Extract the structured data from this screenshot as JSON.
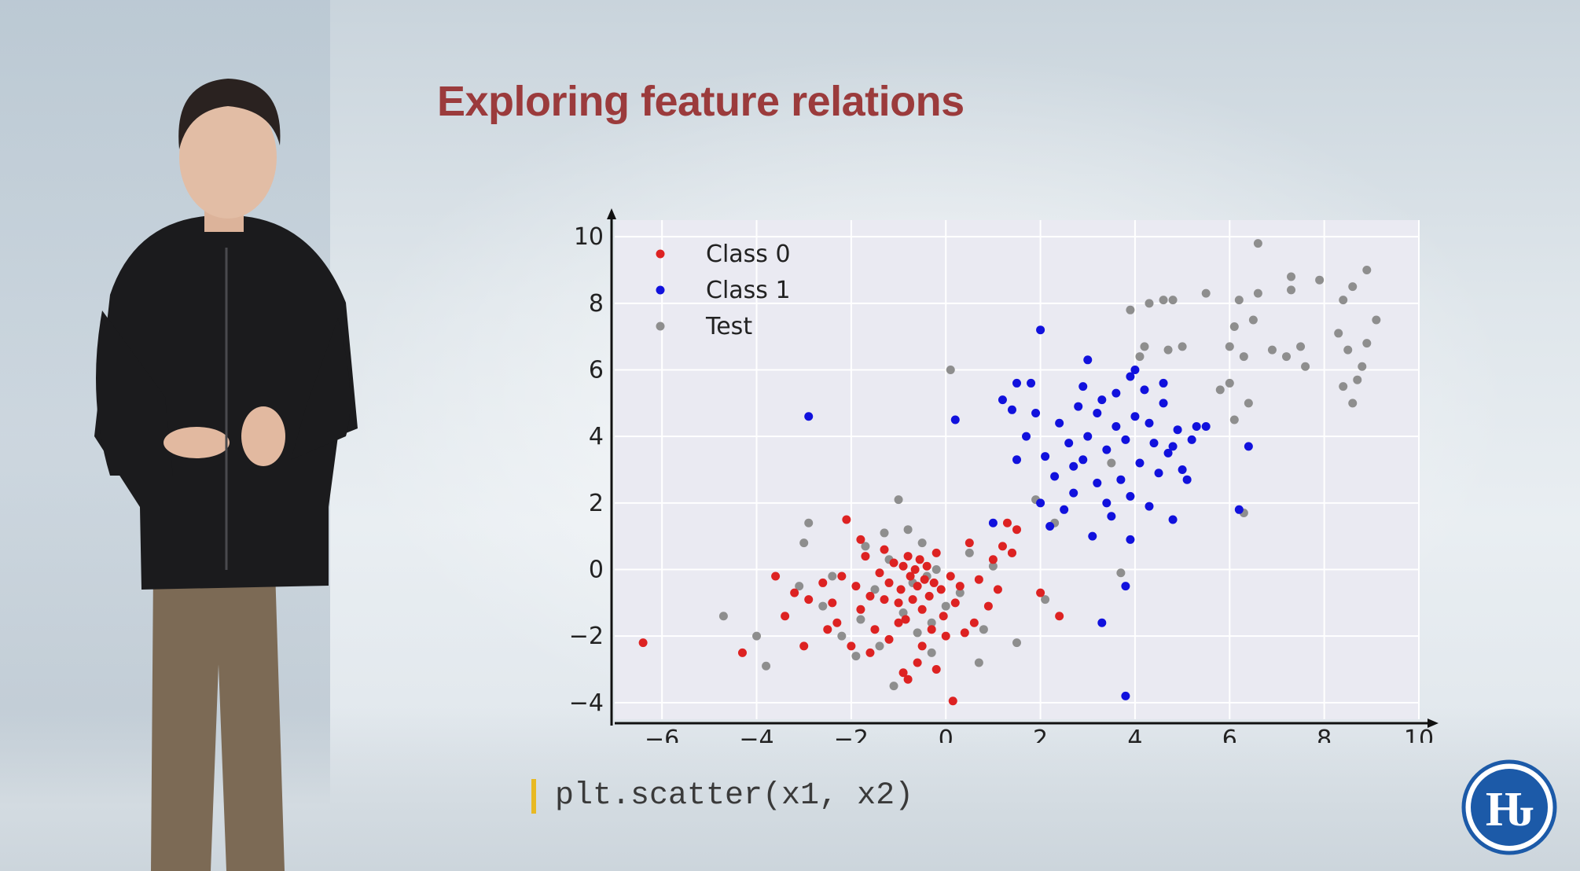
{
  "slide": {
    "title": "Exploring feature relations",
    "code": "plt.scatter(x1, x2)"
  },
  "colors": {
    "title": "#9b3b3c",
    "class0": "#dd2222",
    "class1": "#1111dd",
    "test": "#8e8e8e",
    "plot_bg": "#eaeaf2",
    "code_bar": "#e8b923",
    "logo": "#1c5aa8"
  },
  "logo": {
    "glyph": "Ԋ"
  },
  "chart_data": {
    "type": "scatter",
    "xlim": [
      -7,
      10
    ],
    "ylim": [
      -4.5,
      10.5
    ],
    "xticks": [
      -6,
      -4,
      -2,
      0,
      2,
      4,
      6,
      8,
      10
    ],
    "yticks": [
      -4,
      -2,
      0,
      2,
      4,
      6,
      8,
      10
    ],
    "grid": true,
    "legend_position": "top-left",
    "series": [
      {
        "name": "Class 0",
        "color": "#dd2222",
        "points": [
          [
            -6.4,
            -2.2
          ],
          [
            -4.3,
            -2.5
          ],
          [
            -3.6,
            -0.2
          ],
          [
            -3.4,
            -1.4
          ],
          [
            -3.2,
            -0.7
          ],
          [
            -3.0,
            -2.3
          ],
          [
            -2.9,
            -0.9
          ],
          [
            -2.6,
            -0.4
          ],
          [
            -2.4,
            -1.0
          ],
          [
            -2.3,
            -1.6
          ],
          [
            -2.2,
            -0.2
          ],
          [
            -2.1,
            1.5
          ],
          [
            -2.0,
            -2.3
          ],
          [
            -1.9,
            -0.5
          ],
          [
            -1.8,
            -1.2
          ],
          [
            -1.7,
            0.4
          ],
          [
            -1.6,
            -0.8
          ],
          [
            -1.5,
            -1.8
          ],
          [
            -1.4,
            -0.1
          ],
          [
            -1.3,
            0.6
          ],
          [
            -1.2,
            -0.4
          ],
          [
            -1.2,
            -2.1
          ],
          [
            -1.1,
            0.2
          ],
          [
            -1.0,
            -1.0
          ],
          [
            -0.95,
            -0.6
          ],
          [
            -0.9,
            0.1
          ],
          [
            -0.85,
            -1.5
          ],
          [
            -0.8,
            0.4
          ],
          [
            -0.75,
            -0.2
          ],
          [
            -0.7,
            -0.9
          ],
          [
            -0.65,
            0.0
          ],
          [
            -0.6,
            -0.5
          ],
          [
            -0.55,
            0.3
          ],
          [
            -0.5,
            -1.2
          ],
          [
            -0.45,
            -0.3
          ],
          [
            -0.4,
            0.1
          ],
          [
            -0.35,
            -0.8
          ],
          [
            -0.3,
            -1.8
          ],
          [
            -0.25,
            -0.4
          ],
          [
            -0.2,
            0.5
          ],
          [
            -0.1,
            -0.6
          ],
          [
            -0.05,
            -1.4
          ],
          [
            0.0,
            -2.0
          ],
          [
            0.1,
            -0.2
          ],
          [
            0.2,
            -1.0
          ],
          [
            0.3,
            -0.5
          ],
          [
            0.4,
            -1.9
          ],
          [
            0.5,
            0.8
          ],
          [
            0.7,
            -0.3
          ],
          [
            0.9,
            -1.1
          ],
          [
            1.0,
            0.3
          ],
          [
            1.1,
            -0.6
          ],
          [
            1.2,
            0.7
          ],
          [
            1.4,
            0.5
          ],
          [
            1.3,
            1.4
          ],
          [
            1.5,
            1.2
          ],
          [
            2.0,
            -0.7
          ],
          [
            2.4,
            -1.4
          ],
          [
            -0.9,
            -3.1
          ],
          [
            -0.8,
            -3.3
          ],
          [
            0.15,
            -3.95
          ],
          [
            -0.6,
            -2.8
          ],
          [
            -0.2,
            -3.0
          ],
          [
            -1.6,
            -2.5
          ],
          [
            -2.5,
            -1.8
          ],
          [
            -1.0,
            -1.6
          ],
          [
            -0.5,
            -2.3
          ],
          [
            0.6,
            -1.6
          ],
          [
            -1.8,
            0.9
          ],
          [
            -1.3,
            -0.9
          ]
        ]
      },
      {
        "name": "Class 1",
        "color": "#1111dd",
        "points": [
          [
            -2.9,
            4.6
          ],
          [
            0.2,
            4.5
          ],
          [
            1.0,
            1.4
          ],
          [
            1.2,
            5.1
          ],
          [
            1.4,
            4.8
          ],
          [
            1.5,
            3.3
          ],
          [
            1.5,
            5.6
          ],
          [
            1.7,
            4.0
          ],
          [
            1.8,
            5.6
          ],
          [
            1.9,
            4.7
          ],
          [
            2.0,
            7.2
          ],
          [
            2.0,
            2.0
          ],
          [
            2.1,
            3.4
          ],
          [
            2.2,
            1.3
          ],
          [
            2.3,
            2.8
          ],
          [
            2.4,
            4.4
          ],
          [
            2.5,
            1.8
          ],
          [
            2.6,
            3.8
          ],
          [
            2.7,
            2.3
          ],
          [
            2.8,
            4.9
          ],
          [
            2.9,
            3.3
          ],
          [
            3.0,
            6.3
          ],
          [
            3.0,
            4.0
          ],
          [
            3.1,
            1.0
          ],
          [
            3.2,
            2.6
          ],
          [
            3.3,
            5.1
          ],
          [
            3.4,
            3.6
          ],
          [
            3.5,
            1.6
          ],
          [
            3.6,
            4.3
          ],
          [
            3.7,
            2.7
          ],
          [
            3.8,
            3.9
          ],
          [
            3.9,
            5.8
          ],
          [
            3.9,
            2.2
          ],
          [
            4.0,
            4.6
          ],
          [
            4.1,
            3.2
          ],
          [
            4.2,
            5.4
          ],
          [
            4.3,
            1.9
          ],
          [
            4.4,
            3.8
          ],
          [
            4.5,
            2.9
          ],
          [
            4.6,
            5.0
          ],
          [
            4.7,
            3.5
          ],
          [
            4.8,
            1.5
          ],
          [
            4.9,
            4.2
          ],
          [
            5.0,
            3.0
          ],
          [
            5.1,
            2.7
          ],
          [
            5.2,
            3.9
          ],
          [
            5.3,
            4.3
          ],
          [
            5.5,
            4.3
          ],
          [
            6.2,
            1.8
          ],
          [
            6.4,
            3.7
          ],
          [
            3.8,
            -0.5
          ],
          [
            3.3,
            -1.6
          ],
          [
            3.8,
            -3.8
          ],
          [
            3.9,
            0.9
          ],
          [
            3.6,
            5.3
          ],
          [
            4.0,
            6.0
          ],
          [
            4.6,
            5.6
          ],
          [
            2.9,
            5.5
          ],
          [
            3.2,
            4.7
          ],
          [
            4.3,
            4.4
          ],
          [
            2.7,
            3.1
          ],
          [
            3.4,
            2.0
          ],
          [
            4.8,
            3.7
          ]
        ]
      },
      {
        "name": "Test",
        "color": "#8e8e8e",
        "points": [
          [
            -4.7,
            -1.4
          ],
          [
            -4.0,
            -2.0
          ],
          [
            -3.8,
            -2.9
          ],
          [
            -3.1,
            -0.5
          ],
          [
            -3.0,
            0.8
          ],
          [
            -2.9,
            1.4
          ],
          [
            -2.4,
            -0.2
          ],
          [
            -2.2,
            -2.0
          ],
          [
            -1.8,
            -1.5
          ],
          [
            -1.7,
            0.7
          ],
          [
            -1.5,
            -0.6
          ],
          [
            -1.4,
            -2.3
          ],
          [
            -1.3,
            1.1
          ],
          [
            -1.2,
            0.3
          ],
          [
            -1.1,
            -3.5
          ],
          [
            -1.0,
            2.1
          ],
          [
            -0.9,
            -1.3
          ],
          [
            -0.8,
            1.2
          ],
          [
            -0.7,
            -0.4
          ],
          [
            -0.6,
            -1.9
          ],
          [
            -0.5,
            0.8
          ],
          [
            -0.4,
            -0.2
          ],
          [
            -0.3,
            -2.5
          ],
          [
            -0.2,
            0.0
          ],
          [
            0.0,
            -1.1
          ],
          [
            0.1,
            6.0
          ],
          [
            0.3,
            -0.7
          ],
          [
            0.5,
            0.5
          ],
          [
            0.7,
            -2.8
          ],
          [
            0.8,
            -1.8
          ],
          [
            1.0,
            0.1
          ],
          [
            1.5,
            -2.2
          ],
          [
            1.4,
            0.5
          ],
          [
            1.9,
            2.1
          ],
          [
            2.1,
            -0.9
          ],
          [
            2.3,
            1.4
          ],
          [
            3.5,
            3.2
          ],
          [
            3.7,
            -0.1
          ],
          [
            3.9,
            7.8
          ],
          [
            4.1,
            6.4
          ],
          [
            4.2,
            6.7
          ],
          [
            4.3,
            8.0
          ],
          [
            4.6,
            8.1
          ],
          [
            4.7,
            6.6
          ],
          [
            4.8,
            8.1
          ],
          [
            5.0,
            6.7
          ],
          [
            5.5,
            8.3
          ],
          [
            5.8,
            5.4
          ],
          [
            6.0,
            5.6
          ],
          [
            6.0,
            6.7
          ],
          [
            6.1,
            7.3
          ],
          [
            6.1,
            4.5
          ],
          [
            6.2,
            8.1
          ],
          [
            6.3,
            6.4
          ],
          [
            6.4,
            5.0
          ],
          [
            6.5,
            7.5
          ],
          [
            6.6,
            8.3
          ],
          [
            6.6,
            9.8
          ],
          [
            6.9,
            6.6
          ],
          [
            7.2,
            6.4
          ],
          [
            7.3,
            8.8
          ],
          [
            7.3,
            8.4
          ],
          [
            7.5,
            6.7
          ],
          [
            7.6,
            6.1
          ],
          [
            7.9,
            8.7
          ],
          [
            8.3,
            7.1
          ],
          [
            8.4,
            5.5
          ],
          [
            8.4,
            8.1
          ],
          [
            8.5,
            6.6
          ],
          [
            8.6,
            5.0
          ],
          [
            8.6,
            8.5
          ],
          [
            8.7,
            5.7
          ],
          [
            8.8,
            6.1
          ],
          [
            8.9,
            9.0
          ],
          [
            8.9,
            6.8
          ],
          [
            9.1,
            7.5
          ],
          [
            6.3,
            1.7
          ],
          [
            -1.9,
            -2.6
          ],
          [
            -2.6,
            -1.1
          ],
          [
            -0.3,
            -1.6
          ]
        ]
      }
    ]
  }
}
